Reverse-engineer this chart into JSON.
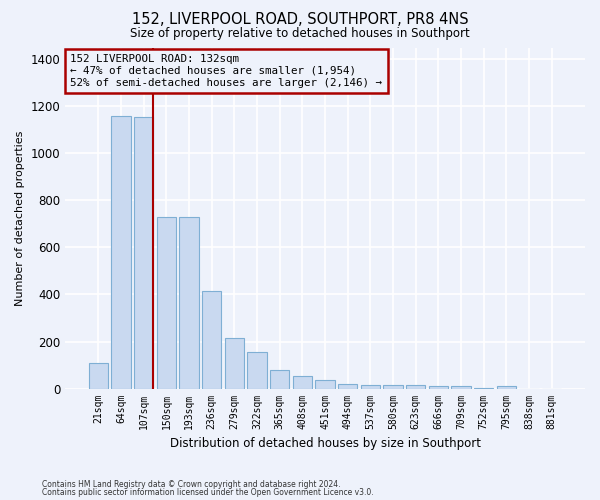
{
  "title": "152, LIVERPOOL ROAD, SOUTHPORT, PR8 4NS",
  "subtitle": "Size of property relative to detached houses in Southport",
  "xlabel": "Distribution of detached houses by size in Southport",
  "ylabel": "Number of detached properties",
  "categories": [
    "21sqm",
    "64sqm",
    "107sqm",
    "150sqm",
    "193sqm",
    "236sqm",
    "279sqm",
    "322sqm",
    "365sqm",
    "408sqm",
    "451sqm",
    "494sqm",
    "537sqm",
    "580sqm",
    "623sqm",
    "666sqm",
    "709sqm",
    "752sqm",
    "795sqm",
    "838sqm",
    "881sqm"
  ],
  "values": [
    110,
    1160,
    1155,
    730,
    730,
    415,
    215,
    155,
    80,
    52,
    35,
    20,
    15,
    14,
    13,
    10,
    10,
    1,
    10,
    0,
    0
  ],
  "bar_color": "#c9d9f0",
  "bar_edge_color": "#7fafd4",
  "red_line_color": "#aa0000",
  "annotation_text": "152 LIVERPOOL ROAD: 132sqm\n← 47% of detached houses are smaller (1,954)\n52% of semi-detached houses are larger (2,146) →",
  "annotation_box_edgecolor": "#aa0000",
  "footnote1": "Contains HM Land Registry data © Crown copyright and database right 2024.",
  "footnote2": "Contains public sector information licensed under the Open Government Licence v3.0.",
  "ylim": [
    0,
    1450
  ],
  "yticks": [
    0,
    200,
    400,
    600,
    800,
    1000,
    1200,
    1400
  ],
  "background_color": "#eef2fb",
  "grid_color": "#ffffff",
  "figsize": [
    6.0,
    5.0
  ],
  "dpi": 100,
  "red_line_index": 2.5
}
